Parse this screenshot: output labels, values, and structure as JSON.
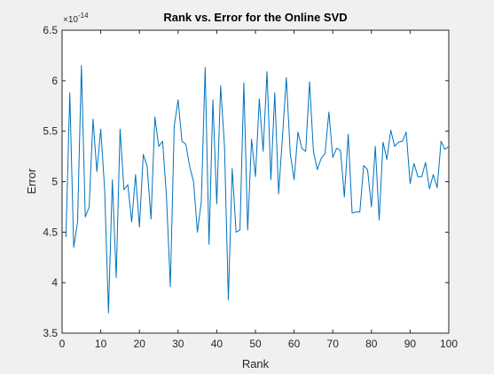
{
  "chart_data": {
    "type": "line",
    "title": "Rank vs. Error for the Online SVD",
    "xlabel": "Rank",
    "ylabel": "Error",
    "exponent_label": "×10",
    "exponent_power": "-14",
    "xlim": [
      0,
      100
    ],
    "ylim": [
      3.5,
      6.5
    ],
    "xticks": [
      0,
      10,
      20,
      30,
      40,
      50,
      60,
      70,
      80,
      90,
      100
    ],
    "yticks": [
      3.5,
      4,
      4.5,
      5,
      5.5,
      6,
      6.5
    ],
    "xtick_labels": [
      "0",
      "10",
      "20",
      "30",
      "40",
      "50",
      "60",
      "70",
      "80",
      "90",
      "100"
    ],
    "ytick_labels": [
      "3.5",
      "4",
      "4.5",
      "5",
      "5.5",
      "6",
      "6.5"
    ],
    "grid": false,
    "legend": "none",
    "colors": {
      "line": "#0072bd",
      "axes_bg": "#ffffff",
      "figure_bg": "#f0f0f0",
      "axis": "#262626"
    },
    "series": [
      {
        "x": [
          1,
          2,
          3,
          4,
          5,
          6,
          7,
          8,
          9,
          10,
          11,
          12,
          13,
          14,
          15,
          16,
          17,
          18,
          19,
          20,
          21,
          22,
          23,
          24,
          25,
          26,
          27,
          28,
          29,
          30,
          31,
          32,
          33,
          34,
          35,
          36,
          37,
          38,
          39,
          40,
          41,
          42,
          43,
          44,
          45,
          46,
          47,
          48,
          49,
          50,
          51,
          52,
          53,
          54,
          55,
          56,
          57,
          58,
          59,
          60,
          61,
          62,
          63,
          64,
          65,
          66,
          67,
          68,
          69,
          70,
          71,
          72,
          73,
          74,
          75,
          76,
          77,
          78,
          79,
          80,
          81,
          82,
          83,
          84,
          85,
          86,
          87,
          88,
          89,
          90,
          91,
          92,
          93,
          94,
          95,
          96,
          97,
          98,
          99,
          100
        ],
        "values": [
          4.45,
          5.88,
          4.35,
          4.6,
          6.15,
          4.65,
          4.75,
          5.62,
          5.1,
          5.52,
          4.93,
          3.7,
          5.02,
          4.05,
          5.52,
          4.92,
          4.97,
          4.6,
          5.07,
          4.55,
          5.27,
          5.15,
          4.63,
          5.64,
          5.35,
          5.4,
          4.85,
          3.96,
          5.55,
          5.81,
          5.4,
          5.37,
          5.15,
          5.0,
          4.5,
          4.8,
          6.13,
          4.38,
          5.81,
          4.78,
          5.95,
          5.35,
          3.83,
          5.13,
          4.5,
          4.52,
          5.98,
          4.52,
          5.42,
          5.05,
          5.82,
          5.3,
          6.09,
          5.02,
          5.88,
          4.88,
          5.45,
          6.03,
          5.28,
          5.02,
          5.49,
          5.33,
          5.3,
          5.99,
          5.3,
          5.12,
          5.23,
          5.28,
          5.69,
          5.24,
          5.33,
          5.31,
          4.85,
          5.47,
          4.69,
          4.7,
          4.7,
          5.16,
          5.12,
          4.75,
          5.35,
          4.62,
          5.39,
          5.22,
          5.51,
          5.35,
          5.39,
          5.4,
          5.49,
          4.98,
          5.18,
          5.05,
          5.05,
          5.19,
          4.93,
          5.07,
          4.94,
          5.4,
          5.32,
          5.35
        ]
      }
    ]
  }
}
